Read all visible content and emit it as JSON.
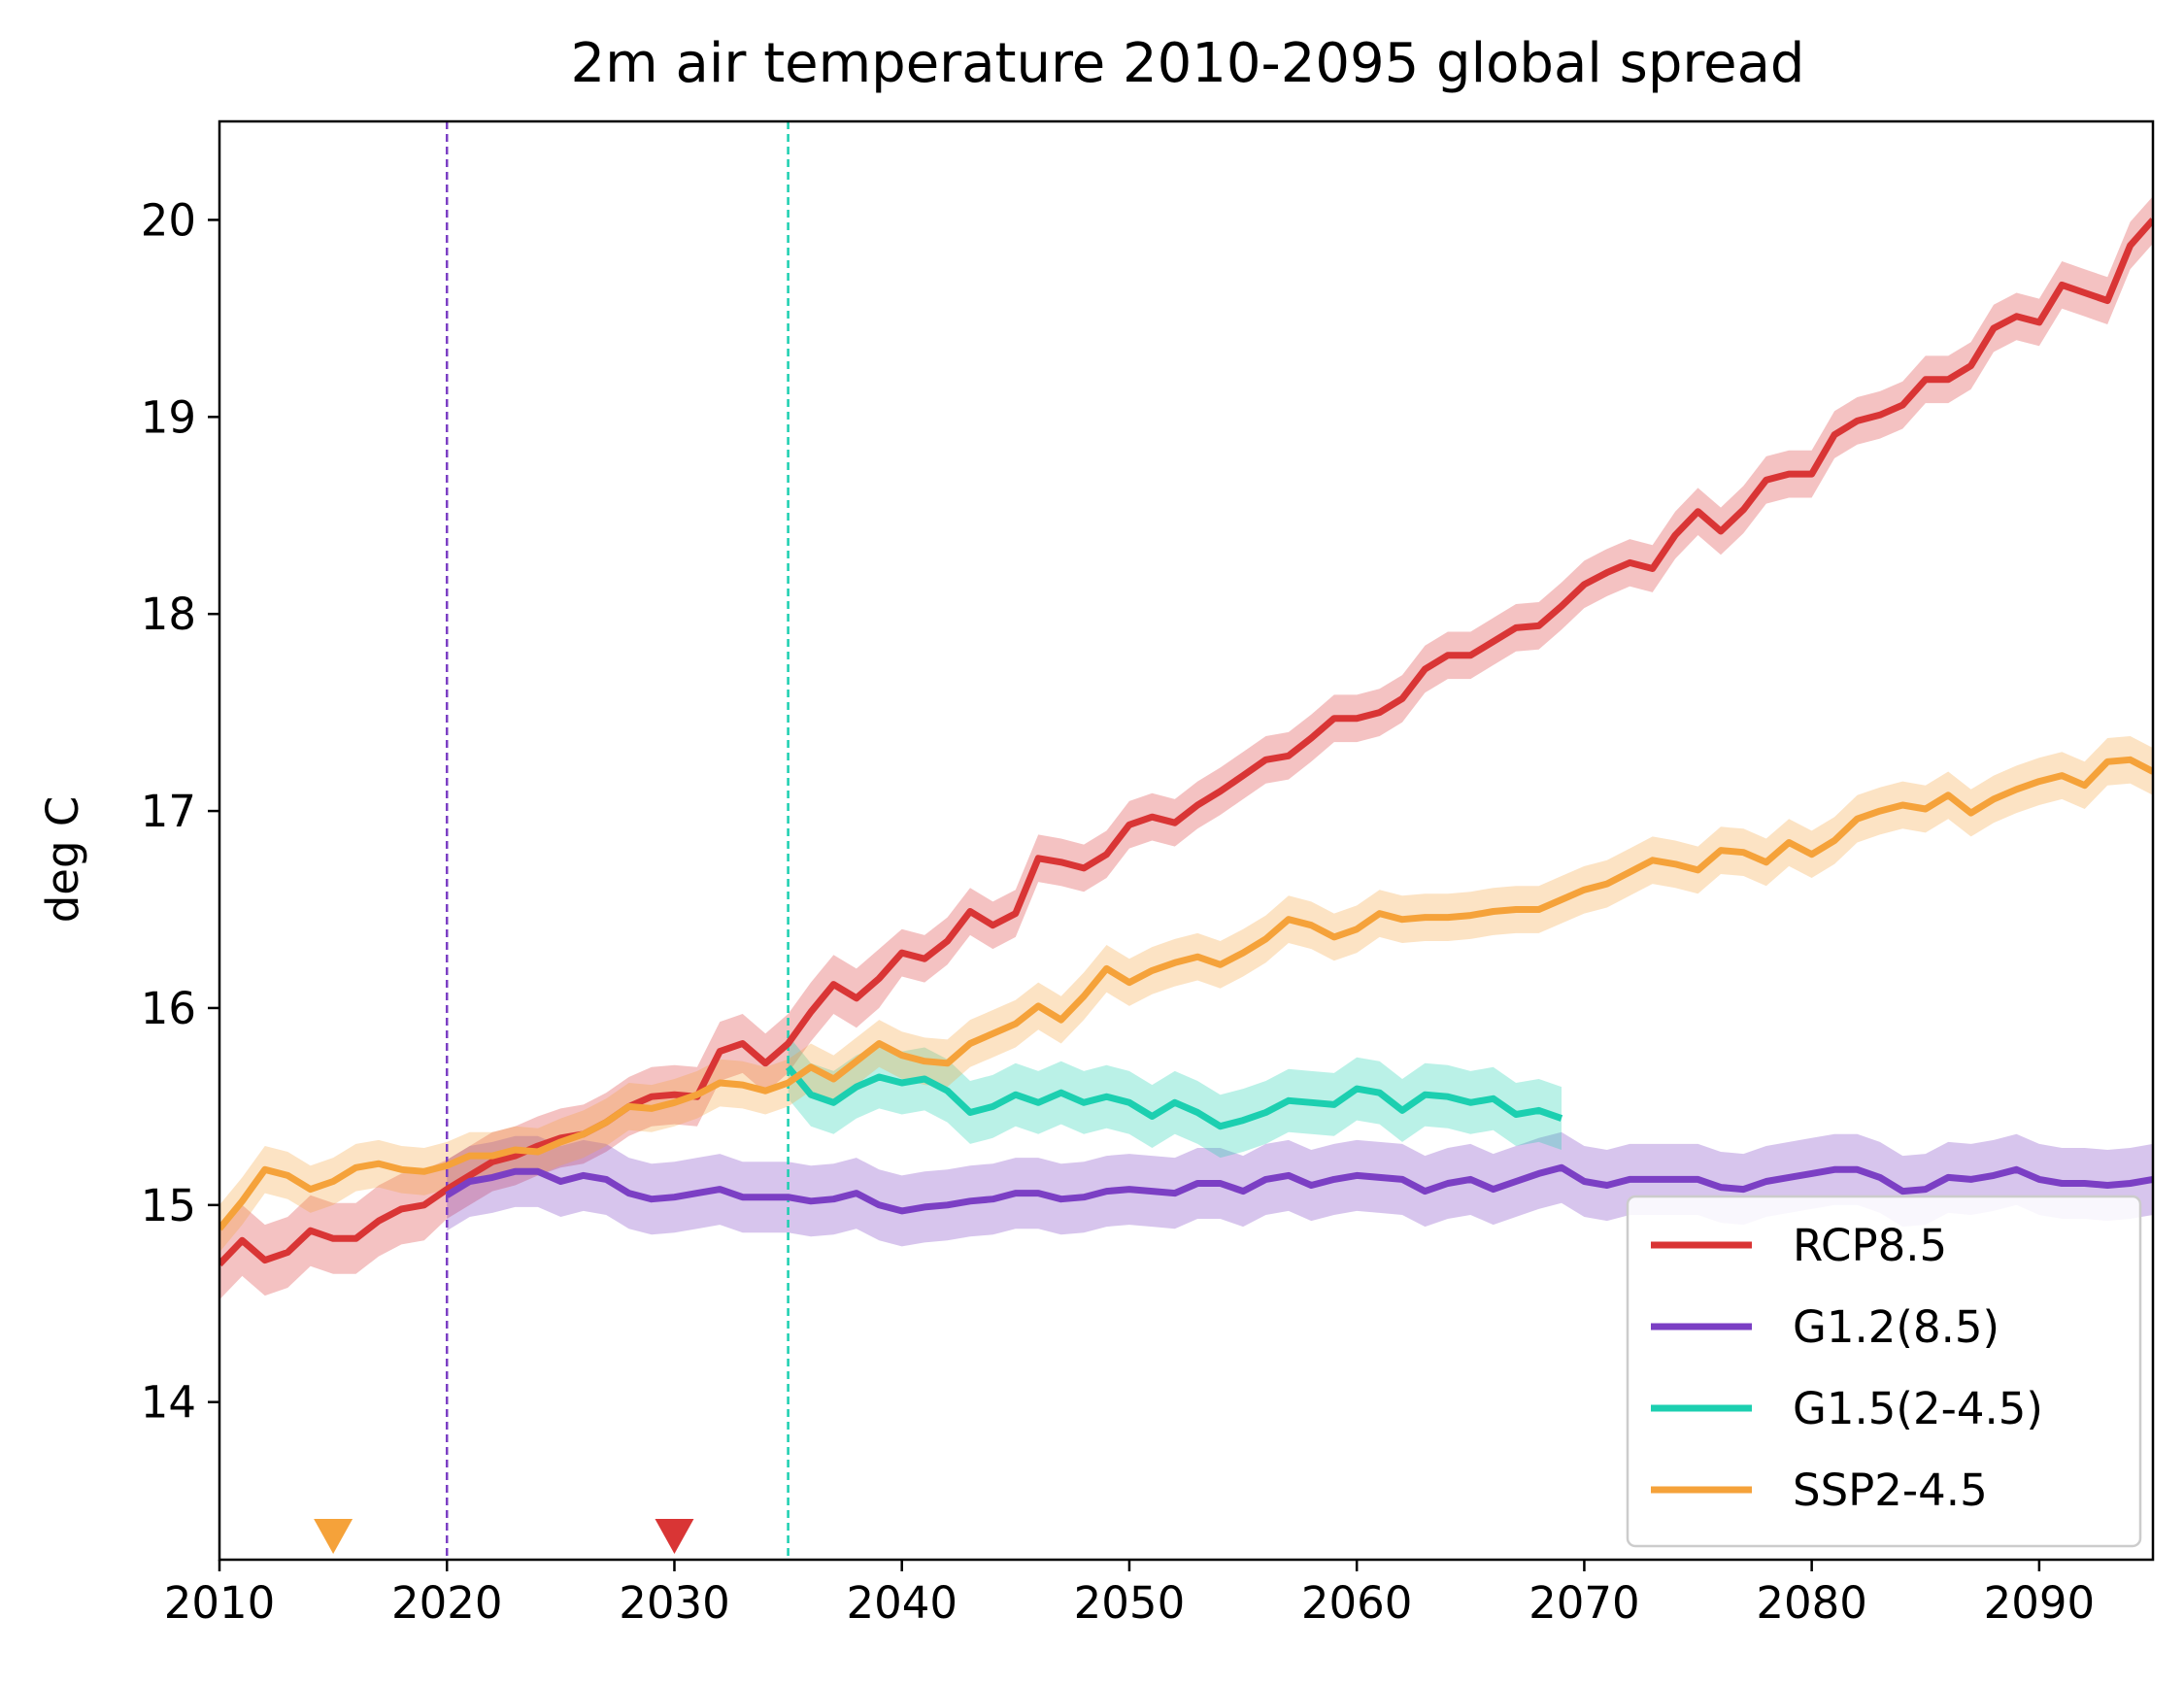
{
  "chart_data": {
    "type": "line",
    "title": "2m air temperature 2010-2095 global spread",
    "xlabel": "",
    "ylabel": "deg C",
    "xlim": [
      2010,
      2095
    ],
    "ylim": [
      13.2,
      20.5
    ],
    "xticks": [
      2010,
      2020,
      2030,
      2040,
      2050,
      2060,
      2070,
      2080,
      2090
    ],
    "yticks": [
      14,
      15,
      16,
      17,
      18,
      19,
      20
    ],
    "grid": false,
    "legend_position": "lower-right",
    "vlines": [
      {
        "x": 2020,
        "color": "#7b3fc4",
        "style": "dashed"
      },
      {
        "x": 2035,
        "color": "#1ccfb0",
        "style": "dashed"
      }
    ],
    "markers": [
      {
        "x": 2015,
        "color": "#f5a23a",
        "shape": "triangle-down"
      },
      {
        "x": 2030,
        "color": "#d93535",
        "shape": "triangle-down"
      }
    ],
    "series": [
      {
        "name": "RCP8.5",
        "color": "#d93535",
        "x_start": 2010,
        "values": [
          14.7,
          14.82,
          14.72,
          14.76,
          14.87,
          14.83,
          14.83,
          14.92,
          14.98,
          15.0,
          15.08,
          15.15,
          15.22,
          15.25,
          15.3,
          15.34,
          15.36,
          15.42,
          15.5,
          15.55,
          15.56,
          15.55,
          15.78,
          15.82,
          15.72,
          15.82,
          15.98,
          16.12,
          16.05,
          16.15,
          16.28,
          16.25,
          16.34,
          16.49,
          16.42,
          16.48,
          16.76,
          16.74,
          16.71,
          16.78,
          16.93,
          16.97,
          16.94,
          17.03,
          17.1,
          17.18,
          17.26,
          17.28,
          17.37,
          17.47,
          17.47,
          17.5,
          17.57,
          17.72,
          17.79,
          17.79,
          17.86,
          17.93,
          17.94,
          18.04,
          18.15,
          18.21,
          18.26,
          18.23,
          18.4,
          18.52,
          18.42,
          18.53,
          18.68,
          18.71,
          18.71,
          18.91,
          18.98,
          19.01,
          19.06,
          19.19,
          19.19,
          19.26,
          19.45,
          19.51,
          19.48,
          19.67,
          19.63,
          19.59,
          19.87,
          20.0
        ],
        "spread": [
          0.18,
          0.18,
          0.18,
          0.18,
          0.18,
          0.18,
          0.18,
          0.18,
          0.18,
          0.18,
          0.15,
          0.15,
          0.15,
          0.15,
          0.15,
          0.15,
          0.15,
          0.15,
          0.15,
          0.15,
          0.15,
          0.15,
          0.15,
          0.15,
          0.15,
          0.15,
          0.15,
          0.15,
          0.15,
          0.15,
          0.12,
          0.12,
          0.12,
          0.12,
          0.12,
          0.12,
          0.12,
          0.12,
          0.12,
          0.12,
          0.12,
          0.12,
          0.12,
          0.12,
          0.12,
          0.12,
          0.12,
          0.12,
          0.12,
          0.12,
          0.12,
          0.12,
          0.12,
          0.12,
          0.12,
          0.12,
          0.12,
          0.12,
          0.12,
          0.12,
          0.12,
          0.12,
          0.12,
          0.12,
          0.12,
          0.12,
          0.12,
          0.12,
          0.12,
          0.12,
          0.12,
          0.12,
          0.12,
          0.12,
          0.12,
          0.12,
          0.12,
          0.12,
          0.12,
          0.12,
          0.12,
          0.12,
          0.12,
          0.12,
          0.12,
          0.12
        ]
      },
      {
        "name": "G1.2(8.5)",
        "color": "#7b3fc4",
        "x_start": 2020,
        "values": [
          15.05,
          15.12,
          15.14,
          15.17,
          15.17,
          15.12,
          15.15,
          15.13,
          15.06,
          15.03,
          15.04,
          15.06,
          15.08,
          15.04,
          15.04,
          15.04,
          15.02,
          15.03,
          15.06,
          15.0,
          14.97,
          14.99,
          15.0,
          15.02,
          15.03,
          15.06,
          15.06,
          15.03,
          15.04,
          15.07,
          15.08,
          15.07,
          15.06,
          15.11,
          15.11,
          15.07,
          15.13,
          15.15,
          15.1,
          15.13,
          15.15,
          15.14,
          15.13,
          15.07,
          15.11,
          15.13,
          15.08,
          15.12,
          15.16,
          15.19,
          15.12,
          15.1,
          15.13,
          15.13,
          15.13,
          15.13,
          15.09,
          15.08,
          15.12,
          15.14,
          15.16,
          15.18,
          15.18,
          15.14,
          15.07,
          15.08,
          15.14,
          15.13,
          15.15,
          15.18,
          15.13,
          15.11,
          15.11,
          15.1,
          15.11,
          15.13
        ],
        "spread": [
          0.18,
          0.18,
          0.18,
          0.18,
          0.18,
          0.18,
          0.18,
          0.18,
          0.18,
          0.18,
          0.18,
          0.18,
          0.18,
          0.18,
          0.18,
          0.18,
          0.18,
          0.18,
          0.18,
          0.18,
          0.18,
          0.18,
          0.18,
          0.18,
          0.18,
          0.18,
          0.18,
          0.18,
          0.18,
          0.18,
          0.18,
          0.18,
          0.18,
          0.18,
          0.18,
          0.18,
          0.18,
          0.18,
          0.18,
          0.18,
          0.18,
          0.18,
          0.18,
          0.18,
          0.18,
          0.18,
          0.18,
          0.18,
          0.18,
          0.18,
          0.18,
          0.18,
          0.18,
          0.18,
          0.18,
          0.18,
          0.18,
          0.18,
          0.18,
          0.18,
          0.18,
          0.18,
          0.18,
          0.18,
          0.18,
          0.18,
          0.18,
          0.18,
          0.18,
          0.18,
          0.18,
          0.18,
          0.18,
          0.18,
          0.18,
          0.18
        ]
      },
      {
        "name": "G1.5(2-4.5)",
        "color": "#1ccfb0",
        "x_start": 2035,
        "values": [
          15.7,
          15.56,
          15.52,
          15.6,
          15.65,
          15.62,
          15.64,
          15.58,
          15.47,
          15.5,
          15.56,
          15.52,
          15.57,
          15.52,
          15.55,
          15.52,
          15.45,
          15.52,
          15.47,
          15.4,
          15.43,
          15.47,
          15.53,
          15.52,
          15.51,
          15.59,
          15.57,
          15.48,
          15.56,
          15.55,
          15.52,
          15.54,
          15.46,
          15.48,
          15.44
        ],
        "spread": [
          0.16,
          0.16,
          0.16,
          0.16,
          0.16,
          0.16,
          0.16,
          0.16,
          0.16,
          0.16,
          0.16,
          0.16,
          0.16,
          0.16,
          0.16,
          0.16,
          0.16,
          0.16,
          0.16,
          0.16,
          0.16,
          0.16,
          0.16,
          0.16,
          0.16,
          0.16,
          0.16,
          0.16,
          0.16,
          0.16,
          0.16,
          0.16,
          0.16,
          0.16,
          0.16
        ]
      },
      {
        "name": "SSP2-4.5",
        "color": "#f5a23a",
        "x_start": 2010,
        "values": [
          14.88,
          15.02,
          15.18,
          15.15,
          15.08,
          15.12,
          15.19,
          15.21,
          15.18,
          15.17,
          15.2,
          15.25,
          15.25,
          15.28,
          15.27,
          15.32,
          15.36,
          15.42,
          15.5,
          15.49,
          15.52,
          15.56,
          15.62,
          15.61,
          15.58,
          15.62,
          15.7,
          15.64,
          15.73,
          15.82,
          15.76,
          15.73,
          15.72,
          15.82,
          15.87,
          15.92,
          16.01,
          15.94,
          16.06,
          16.2,
          16.13,
          16.19,
          16.23,
          16.26,
          16.22,
          16.28,
          16.35,
          16.45,
          16.42,
          16.36,
          16.4,
          16.48,
          16.45,
          16.46,
          16.46,
          16.47,
          16.49,
          16.5,
          16.5,
          16.55,
          16.6,
          16.63,
          16.69,
          16.75,
          16.73,
          16.7,
          16.8,
          16.79,
          16.74,
          16.84,
          16.78,
          16.85,
          16.96,
          17.0,
          17.03,
          17.01,
          17.08,
          16.99,
          17.06,
          17.11,
          17.15,
          17.18,
          17.13,
          17.25,
          17.26,
          17.2
        ],
        "spread": [
          0.12,
          0.12,
          0.12,
          0.12,
          0.12,
          0.12,
          0.12,
          0.12,
          0.12,
          0.12,
          0.12,
          0.12,
          0.12,
          0.12,
          0.12,
          0.12,
          0.12,
          0.12,
          0.12,
          0.12,
          0.12,
          0.12,
          0.12,
          0.12,
          0.12,
          0.12,
          0.12,
          0.12,
          0.12,
          0.12,
          0.12,
          0.12,
          0.12,
          0.12,
          0.12,
          0.12,
          0.12,
          0.12,
          0.12,
          0.12,
          0.12,
          0.12,
          0.12,
          0.12,
          0.12,
          0.12,
          0.12,
          0.12,
          0.12,
          0.12,
          0.12,
          0.12,
          0.12,
          0.12,
          0.12,
          0.12,
          0.12,
          0.12,
          0.12,
          0.12,
          0.12,
          0.12,
          0.12,
          0.12,
          0.12,
          0.12,
          0.12,
          0.12,
          0.12,
          0.12,
          0.12,
          0.12,
          0.12,
          0.12,
          0.12,
          0.12,
          0.12,
          0.12,
          0.12,
          0.12,
          0.12,
          0.12,
          0.12,
          0.12,
          0.12,
          0.12
        ]
      }
    ]
  }
}
